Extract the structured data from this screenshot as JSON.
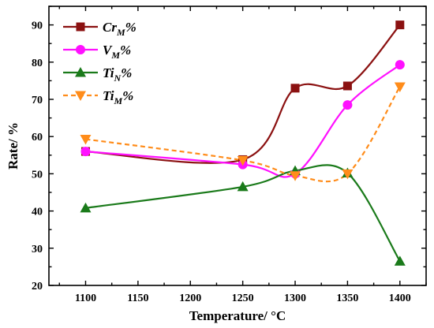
{
  "chart_data": {
    "type": "line",
    "xlabel": "Temperature/ °C",
    "ylabel": "Rate/ %",
    "xlim": [
      1065,
      1425
    ],
    "ylim": [
      20,
      95
    ],
    "xticks": [
      1100,
      1150,
      1200,
      1250,
      1300,
      1350,
      1400
    ],
    "yticks": [
      20,
      30,
      40,
      50,
      60,
      70,
      80,
      90
    ],
    "grid": false,
    "legend_position": "top-left",
    "series": [
      {
        "name": "CrM%",
        "label_main": "Cr",
        "label_sub": "M",
        "label_suffix": "%",
        "color": "#8b1111",
        "marker": "square",
        "dash": "solid",
        "x": [
          1100,
          1250,
          1300,
          1350,
          1400
        ],
        "values": [
          56,
          53.8,
          73,
          73.6,
          90
        ]
      },
      {
        "name": "VM%",
        "label_main": "V",
        "label_sub": "M",
        "label_suffix": "%",
        "color": "#ff10ff",
        "marker": "circle",
        "dash": "solid",
        "x": [
          1100,
          1250,
          1300,
          1350,
          1400
        ],
        "values": [
          56,
          52.5,
          50,
          68.5,
          79.3
        ]
      },
      {
        "name": "TiN%",
        "label_main": "Ti",
        "label_sub": "N",
        "label_suffix": "%",
        "color": "#1a7a1a",
        "marker": "triangle-up",
        "dash": "solid",
        "x": [
          1100,
          1250,
          1300,
          1350,
          1400
        ],
        "values": [
          40.8,
          46.5,
          50.8,
          50.2,
          26.5
        ]
      },
      {
        "name": "TiM%",
        "label_main": "Ti",
        "label_sub": "M",
        "label_suffix": "%",
        "color": "#ff8c1a",
        "marker": "triangle-down",
        "dash": "dashed",
        "x": [
          1100,
          1250,
          1300,
          1350,
          1400
        ],
        "values": [
          59.3,
          53.6,
          49.5,
          50,
          73.4
        ]
      }
    ]
  }
}
